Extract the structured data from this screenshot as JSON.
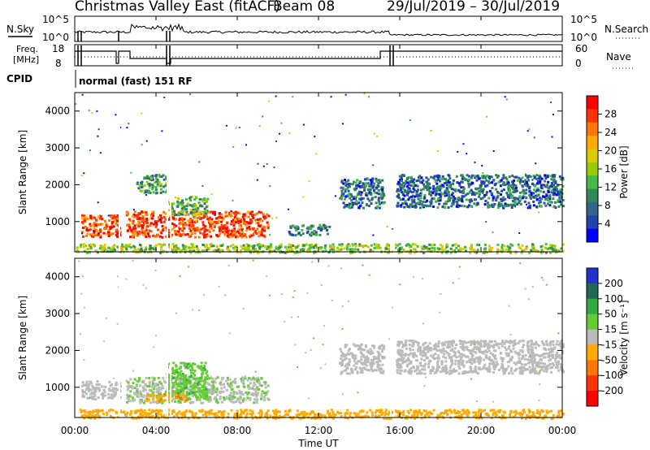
{
  "header": {
    "station": "Christmas Valley East (fitACF)",
    "beam": "Beam 08",
    "dates": "29/Jul/2019 – 30/Jul/2019"
  },
  "top_panels": {
    "nsky_label": "N.Sky",
    "nsky_ticks": [
      "10^5",
      "10^0"
    ],
    "nsearch_label": "N.Search",
    "nsearch_ticks": [
      "10^5",
      "10^0"
    ],
    "freq_label_1": "Freq.",
    "freq_label_2": "[MHz]",
    "freq_ticks": [
      "18",
      "8"
    ],
    "nave_label": "Nave",
    "nave_ticks": [
      "60",
      "0"
    ],
    "cpid_label": "CPID",
    "cpid_text": "normal (fast) 151 RF"
  },
  "x_axis": {
    "label": "Time UT",
    "ticks": [
      "00:00",
      "04:00",
      "08:00",
      "12:00",
      "16:00",
      "20:00",
      "00:00"
    ]
  },
  "colorbars": {
    "power": {
      "label": "Power [dB]",
      "ticks": [
        "28",
        "24",
        "20",
        "16",
        "12",
        "8",
        "4"
      ],
      "colors": [
        "#ff0000",
        "#ff3300",
        "#ff7700",
        "#ffaa00",
        "#ddcc00",
        "#99cc00",
        "#44bb44",
        "#338855",
        "#336688",
        "#2244aa",
        "#0000ff"
      ]
    },
    "velocity": {
      "label": "Velocity [m s⁻¹]",
      "ticks": [
        "200",
        "100",
        "50",
        "15",
        "-15",
        "-50",
        "-100",
        "-200"
      ],
      "colors": [
        "#2233cc",
        "#226655",
        "#33aa44",
        "#66cc33",
        "#bbbbbb",
        "#ffaa00",
        "#ff7700",
        "#ff3300",
        "#ff0000"
      ]
    }
  },
  "chart_data": [
    {
      "type": "heatmap",
      "title": "Power",
      "xlabel": "Time UT",
      "ylabel": "Slant Range [km]",
      "xlim": [
        0,
        24
      ],
      "ylim": [
        180,
        4500
      ],
      "yticks": [
        "1000",
        "2000",
        "3000",
        "4000"
      ],
      "colorbar_label": "Power [dB]",
      "regions": [
        {
          "t0": 0.3,
          "t1": 2.2,
          "r0": 600,
          "r1": 1200,
          "level": 26
        },
        {
          "t0": 2.5,
          "t1": 9.5,
          "r0": 600,
          "r1": 1300,
          "level": 27
        },
        {
          "t0": 4.5,
          "t1": 6.5,
          "r0": 1200,
          "r1": 1700,
          "level": 12
        },
        {
          "t0": 3.0,
          "t1": 4.5,
          "r0": 1800,
          "r1": 2300,
          "level": 10
        },
        {
          "t0": 10.5,
          "t1": 12.5,
          "r0": 650,
          "r1": 950,
          "level": 8
        },
        {
          "t0": 13.0,
          "t1": 15.2,
          "r0": 1400,
          "r1": 2200,
          "level": 6
        },
        {
          "t0": 15.8,
          "t1": 24,
          "r0": 1400,
          "r1": 2300,
          "level": 6
        },
        {
          "t0": 0.0,
          "t1": 24,
          "r0": 180,
          "r1": 420,
          "level": 14
        }
      ]
    },
    {
      "type": "heatmap",
      "title": "Velocity",
      "xlabel": "Time UT",
      "ylabel": "Slant Range [km]",
      "xlim": [
        0,
        24
      ],
      "ylim": [
        180,
        4500
      ],
      "yticks": [
        "1000",
        "2000",
        "3000",
        "4000"
      ],
      "colorbar_label": "Velocity [m s⁻¹]",
      "regions": [
        {
          "t0": 0.3,
          "t1": 2.2,
          "r0": 700,
          "r1": 1200,
          "level": 0
        },
        {
          "t0": 2.5,
          "t1": 9.5,
          "r0": 600,
          "r1": 1300,
          "level": 10
        },
        {
          "t0": 4.5,
          "t1": 6.5,
          "r0": 700,
          "r1": 1700,
          "level": 40
        },
        {
          "t0": 3.5,
          "t1": 5.5,
          "r0": 650,
          "r1": 850,
          "level": -40
        },
        {
          "t0": 13.0,
          "t1": 15.2,
          "r0": 1400,
          "r1": 2200,
          "level": 0
        },
        {
          "t0": 15.8,
          "t1": 24,
          "r0": 1400,
          "r1": 2300,
          "level": 0
        },
        {
          "t0": 0.0,
          "t1": 24,
          "r0": 180,
          "r1": 420,
          "level": -30
        }
      ]
    }
  ]
}
